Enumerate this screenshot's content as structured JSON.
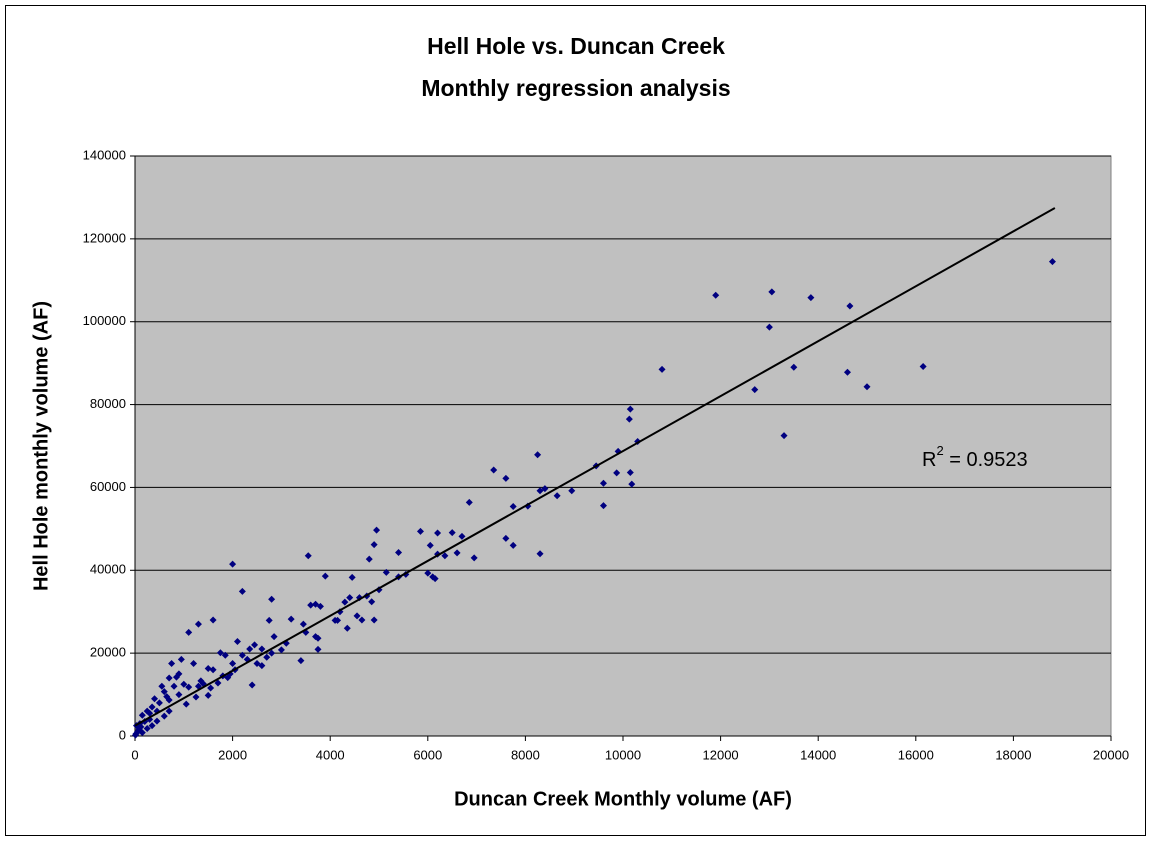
{
  "chart_data": {
    "type": "scatter",
    "title": "Hell Hole vs. Duncan Creek",
    "subtitle": "Monthly regression analysis",
    "xlabel": "Duncan Creek Monthly volume (AF)",
    "ylabel": "Hell Hole monthly volume (AF)",
    "xlim": [
      0,
      20000
    ],
    "xticks": [
      0,
      2000,
      4000,
      6000,
      8000,
      10000,
      12000,
      14000,
      16000,
      18000,
      20000
    ],
    "ylim": [
      0,
      140000
    ],
    "yticks": [
      0,
      20000,
      40000,
      60000,
      80000,
      100000,
      120000,
      140000
    ],
    "grid": true,
    "color": "#000080",
    "plot_background": "#c0c0c0",
    "annotation": {
      "base": "R",
      "sup": "2",
      "text": " = 0.9523"
    },
    "trendline": {
      "color": "#000000",
      "x": [
        0,
        18850
      ],
      "values": [
        2500,
        127450
      ]
    },
    "series": [
      {
        "color": "#000080",
        "x": [
          18800,
          16150,
          15000,
          14650,
          14600,
          13850,
          13500,
          13300,
          13050,
          13000,
          12700,
          11900,
          10800,
          10300,
          10150,
          10130,
          10150,
          10180,
          9900,
          9870,
          9600,
          9600,
          9450,
          8950,
          8650,
          8400,
          8300,
          8250,
          8300,
          8050,
          7750,
          7750,
          7600,
          7600,
          7350,
          6950,
          6850,
          6700,
          6600,
          6500,
          6350,
          6200,
          6200,
          6100,
          6050,
          6000,
          6150,
          5850,
          5550,
          5400,
          5400,
          5150,
          5000,
          4950,
          4900,
          4900,
          4850,
          4800,
          4750,
          4650,
          4600,
          4550,
          4450,
          4400,
          4350,
          4300,
          4200,
          4150,
          4100,
          3900,
          3800,
          3750,
          3700,
          3750,
          3600,
          3550,
          3500,
          3450,
          3400,
          3200,
          3100,
          2850,
          2800,
          2800,
          2750,
          2700,
          2600,
          2500,
          2450,
          2350,
          2300,
          2200,
          2200,
          2100,
          2000,
          2000,
          1950,
          1850,
          1800,
          1750,
          1600,
          1600,
          1500,
          1500,
          1400,
          1300,
          1300,
          1200,
          1100,
          1050,
          1000,
          950,
          900,
          850,
          800,
          750,
          700,
          700,
          650,
          600,
          550,
          500,
          450,
          400,
          350,
          300,
          300,
          250,
          200,
          150,
          120,
          100,
          80,
          50,
          30,
          20,
          10,
          900,
          1700,
          2400,
          1900,
          1250,
          1550,
          600,
          450,
          350,
          250,
          150,
          700,
          1100,
          1350,
          2600,
          3000,
          2050,
          3700
        ],
        "values": [
          114500,
          89200,
          84300,
          103800,
          87800,
          105800,
          89000,
          72500,
          107200,
          98700,
          83600,
          106400,
          88500,
          71100,
          78900,
          76500,
          63600,
          60800,
          68700,
          63500,
          61000,
          55600,
          65200,
          59200,
          58000,
          59700,
          59200,
          67900,
          44000,
          55500,
          55400,
          46000,
          47700,
          62200,
          64200,
          43000,
          56400,
          48200,
          44200,
          49100,
          43500,
          43900,
          49000,
          38400,
          46000,
          39300,
          38000,
          49400,
          39000,
          38400,
          44300,
          39500,
          35300,
          49700,
          46200,
          28000,
          32400,
          42700,
          33800,
          28000,
          33400,
          29000,
          38300,
          33400,
          26000,
          32300,
          30000,
          27900,
          27900,
          38600,
          31300,
          23600,
          31800,
          20900,
          31600,
          43500,
          25000,
          27000,
          18200,
          28200,
          22400,
          24000,
          33000,
          20000,
          27900,
          19000,
          21000,
          17500,
          22000,
          21000,
          18500,
          34900,
          19500,
          22800,
          41500,
          17500,
          15000,
          19500,
          14500,
          20100,
          28000,
          16000,
          16300,
          9800,
          12600,
          27000,
          12000,
          17500,
          25000,
          7700,
          12500,
          18500,
          10000,
          14200,
          12000,
          17500,
          14000,
          6000,
          9500,
          10700,
          12000,
          8000,
          6000,
          9000,
          7000,
          5500,
          4000,
          6000,
          3500,
          5000,
          2200,
          3000,
          1500,
          1000,
          2500,
          500,
          200,
          15000,
          12800,
          12300,
          14100,
          9400,
          11600,
          4800,
          3600,
          2500,
          1800,
          800,
          8700,
          11800,
          13300,
          17000,
          20800,
          16000,
          24000
        ]
      }
    ]
  }
}
